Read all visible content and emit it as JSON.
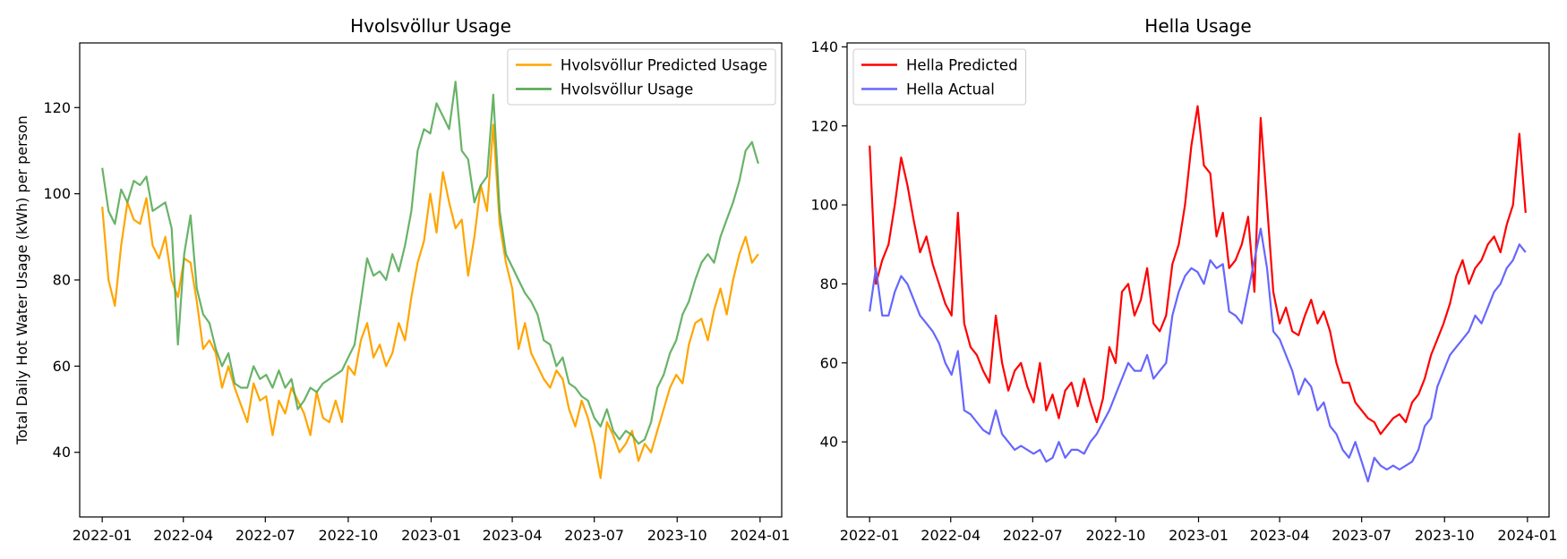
{
  "chart_data": [
    {
      "type": "line",
      "title": "Hvolsvöllur Usage",
      "xlabel": "",
      "ylabel": "Total Daily Hot Water Usage (kWh) per person",
      "xlim": [
        "2021-12-07",
        "2024-01-25"
      ],
      "ylim": [
        25,
        135
      ],
      "x_ticks": [
        "2022-01",
        "2022-04",
        "2022-07",
        "2022-10",
        "2023-01",
        "2023-04",
        "2023-07",
        "2023-10",
        "2024-01"
      ],
      "y_ticks": [
        40,
        60,
        80,
        100,
        120
      ],
      "legend_position": "top-right",
      "grid": false,
      "sample_every": "7 days",
      "x": [
        "2022-01-01",
        "2022-01-08",
        "2022-01-15",
        "2022-01-22",
        "2022-01-29",
        "2022-02-05",
        "2022-02-12",
        "2022-02-19",
        "2022-02-26",
        "2022-03-05",
        "2022-03-12",
        "2022-03-19",
        "2022-03-26",
        "2022-04-02",
        "2022-04-09",
        "2022-04-16",
        "2022-04-23",
        "2022-04-30",
        "2022-05-07",
        "2022-05-14",
        "2022-05-21",
        "2022-05-28",
        "2022-06-04",
        "2022-06-11",
        "2022-06-18",
        "2022-06-25",
        "2022-07-02",
        "2022-07-09",
        "2022-07-16",
        "2022-07-23",
        "2022-07-30",
        "2022-08-06",
        "2022-08-13",
        "2022-08-20",
        "2022-08-27",
        "2022-09-03",
        "2022-09-10",
        "2022-09-17",
        "2022-09-24",
        "2022-10-01",
        "2022-10-08",
        "2022-10-15",
        "2022-10-22",
        "2022-10-29",
        "2022-11-05",
        "2022-11-12",
        "2022-11-19",
        "2022-11-26",
        "2022-12-03",
        "2022-12-10",
        "2022-12-17",
        "2022-12-24",
        "2022-12-31",
        "2023-01-07",
        "2023-01-14",
        "2023-01-21",
        "2023-01-28",
        "2023-02-04",
        "2023-02-11",
        "2023-02-18",
        "2023-02-25",
        "2023-03-04",
        "2023-03-11",
        "2023-03-18",
        "2023-03-25",
        "2023-04-01",
        "2023-04-08",
        "2023-04-15",
        "2023-04-22",
        "2023-04-29",
        "2023-05-06",
        "2023-05-13",
        "2023-05-20",
        "2023-05-27",
        "2023-06-03",
        "2023-06-10",
        "2023-06-17",
        "2023-06-24",
        "2023-07-01",
        "2023-07-08",
        "2023-07-15",
        "2023-07-22",
        "2023-07-29",
        "2023-08-05",
        "2023-08-12",
        "2023-08-19",
        "2023-08-26",
        "2023-09-02",
        "2023-09-09",
        "2023-09-16",
        "2023-09-23",
        "2023-09-30",
        "2023-10-07",
        "2023-10-14",
        "2023-10-21",
        "2023-10-28",
        "2023-11-04",
        "2023-11-11",
        "2023-11-18",
        "2023-11-25",
        "2023-12-02",
        "2023-12-09",
        "2023-12-16",
        "2023-12-23",
        "2023-12-30"
      ],
      "series": [
        {
          "name": "Hvolsvöllur Predicted Usage",
          "color": "#ffa500",
          "values": [
            97,
            80,
            74,
            88,
            98,
            94,
            93,
            99,
            88,
            85,
            90,
            80,
            76,
            85,
            84,
            75,
            64,
            66,
            63,
            55,
            60,
            55,
            51,
            47,
            56,
            52,
            53,
            44,
            52,
            49,
            55,
            52,
            49,
            44,
            54,
            48,
            47,
            52,
            47,
            60,
            58,
            66,
            70,
            62,
            65,
            60,
            63,
            70,
            66,
            76,
            84,
            89,
            100,
            91,
            105,
            98,
            92,
            94,
            81,
            90,
            102,
            96,
            116,
            93,
            84,
            78,
            64,
            70,
            63,
            60,
            57,
            55,
            59,
            57,
            50,
            46,
            52,
            48,
            42,
            34,
            47,
            44,
            40,
            42,
            45,
            38,
            42,
            40,
            45,
            50,
            55,
            58,
            56,
            65,
            70,
            71,
            66,
            73,
            78,
            72,
            80,
            86,
            90,
            84,
            86
          ]
        },
        {
          "name": "Hvolsvöllur Usage",
          "color": "#4da64d",
          "values": [
            106,
            96,
            93,
            101,
            98,
            103,
            102,
            104,
            96,
            97,
            98,
            92,
            65,
            86,
            95,
            78,
            72,
            70,
            64,
            60,
            63,
            56,
            55,
            55,
            60,
            57,
            58,
            55,
            59,
            55,
            57,
            50,
            52,
            55,
            54,
            56,
            57,
            58,
            59,
            62,
            65,
            75,
            85,
            81,
            82,
            80,
            86,
            82,
            88,
            96,
            110,
            115,
            114,
            121,
            118,
            115,
            126,
            110,
            108,
            98,
            102,
            104,
            123,
            96,
            86,
            83,
            80,
            77,
            75,
            72,
            66,
            65,
            60,
            62,
            56,
            55,
            53,
            52,
            48,
            46,
            50,
            45,
            43,
            45,
            44,
            42,
            43,
            47,
            55,
            58,
            63,
            66,
            72,
            75,
            80,
            84,
            86,
            84,
            90,
            94,
            98,
            103,
            110,
            112,
            107
          ]
        }
      ]
    },
    {
      "type": "line",
      "title": "Hella Usage",
      "xlabel": "",
      "ylabel": "",
      "xlim": [
        "2021-12-07",
        "2024-01-25"
      ],
      "ylim": [
        21,
        141
      ],
      "x_ticks": [
        "2022-01",
        "2022-04",
        "2022-07",
        "2022-10",
        "2023-01",
        "2023-04",
        "2023-07",
        "2023-10",
        "2024-01"
      ],
      "y_ticks": [
        40,
        60,
        80,
        100,
        120,
        140
      ],
      "legend_position": "top-left",
      "grid": false,
      "sample_every": "7 days",
      "x": [
        "2022-01-01",
        "2022-01-08",
        "2022-01-15",
        "2022-01-22",
        "2022-01-29",
        "2022-02-05",
        "2022-02-12",
        "2022-02-19",
        "2022-02-26",
        "2022-03-05",
        "2022-03-12",
        "2022-03-19",
        "2022-03-26",
        "2022-04-02",
        "2022-04-09",
        "2022-04-16",
        "2022-04-23",
        "2022-04-30",
        "2022-05-07",
        "2022-05-14",
        "2022-05-21",
        "2022-05-28",
        "2022-06-04",
        "2022-06-11",
        "2022-06-18",
        "2022-06-25",
        "2022-07-02",
        "2022-07-09",
        "2022-07-16",
        "2022-07-23",
        "2022-07-30",
        "2022-08-06",
        "2022-08-13",
        "2022-08-20",
        "2022-08-27",
        "2022-09-03",
        "2022-09-10",
        "2022-09-17",
        "2022-09-24",
        "2022-10-01",
        "2022-10-08",
        "2022-10-15",
        "2022-10-22",
        "2022-10-29",
        "2022-11-05",
        "2022-11-12",
        "2022-11-19",
        "2022-11-26",
        "2022-12-03",
        "2022-12-10",
        "2022-12-17",
        "2022-12-24",
        "2022-12-31",
        "2023-01-07",
        "2023-01-14",
        "2023-01-21",
        "2023-01-28",
        "2023-02-04",
        "2023-02-11",
        "2023-02-18",
        "2023-02-25",
        "2023-03-04",
        "2023-03-11",
        "2023-03-18",
        "2023-03-25",
        "2023-04-01",
        "2023-04-08",
        "2023-04-15",
        "2023-04-22",
        "2023-04-29",
        "2023-05-06",
        "2023-05-13",
        "2023-05-20",
        "2023-05-27",
        "2023-06-03",
        "2023-06-10",
        "2023-06-17",
        "2023-06-24",
        "2023-07-01",
        "2023-07-08",
        "2023-07-15",
        "2023-07-22",
        "2023-07-29",
        "2023-08-05",
        "2023-08-12",
        "2023-08-19",
        "2023-08-26",
        "2023-09-02",
        "2023-09-09",
        "2023-09-16",
        "2023-09-23",
        "2023-09-30",
        "2023-10-07",
        "2023-10-14",
        "2023-10-21",
        "2023-10-28",
        "2023-11-04",
        "2023-11-11",
        "2023-11-18",
        "2023-11-25",
        "2023-12-02",
        "2023-12-09",
        "2023-12-16",
        "2023-12-23",
        "2023-12-30"
      ],
      "series": [
        {
          "name": "Hella Predicted",
          "color": "#ff0000",
          "values": [
            115,
            80,
            86,
            90,
            100,
            112,
            105,
            96,
            88,
            92,
            85,
            80,
            75,
            72,
            98,
            70,
            64,
            62,
            58,
            55,
            72,
            60,
            53,
            58,
            60,
            54,
            50,
            60,
            48,
            52,
            46,
            53,
            55,
            49,
            56,
            50,
            45,
            51,
            64,
            60,
            78,
            80,
            72,
            76,
            84,
            70,
            68,
            72,
            85,
            90,
            100,
            115,
            125,
            110,
            108,
            92,
            98,
            84,
            86,
            90,
            97,
            78,
            122,
            100,
            78,
            70,
            74,
            68,
            67,
            72,
            76,
            70,
            73,
            68,
            60,
            55,
            55,
            50,
            48,
            46,
            45,
            42,
            44,
            46,
            47,
            45,
            50,
            52,
            56,
            62,
            66,
            70,
            75,
            82,
            86,
            80,
            84,
            86,
            90,
            92,
            88,
            95,
            100,
            118,
            98
          ]
        },
        {
          "name": "Hella Actual",
          "color": "#6666ff",
          "values": [
            73,
            84,
            72,
            72,
            78,
            82,
            80,
            76,
            72,
            70,
            68,
            65,
            60,
            57,
            63,
            48,
            47,
            45,
            43,
            42,
            48,
            42,
            40,
            38,
            39,
            38,
            37,
            38,
            35,
            36,
            40,
            36,
            38,
            38,
            37,
            40,
            42,
            45,
            48,
            52,
            56,
            60,
            58,
            58,
            62,
            56,
            58,
            60,
            72,
            78,
            82,
            84,
            83,
            80,
            86,
            84,
            85,
            73,
            72,
            70,
            78,
            86,
            94,
            84,
            68,
            66,
            62,
            58,
            52,
            56,
            54,
            48,
            50,
            44,
            42,
            38,
            36,
            40,
            35,
            30,
            36,
            34,
            33,
            34,
            33,
            34,
            35,
            38,
            44,
            46,
            54,
            58,
            62,
            64,
            66,
            68,
            72,
            70,
            74,
            78,
            80,
            84,
            86,
            90,
            88
          ]
        }
      ]
    }
  ]
}
